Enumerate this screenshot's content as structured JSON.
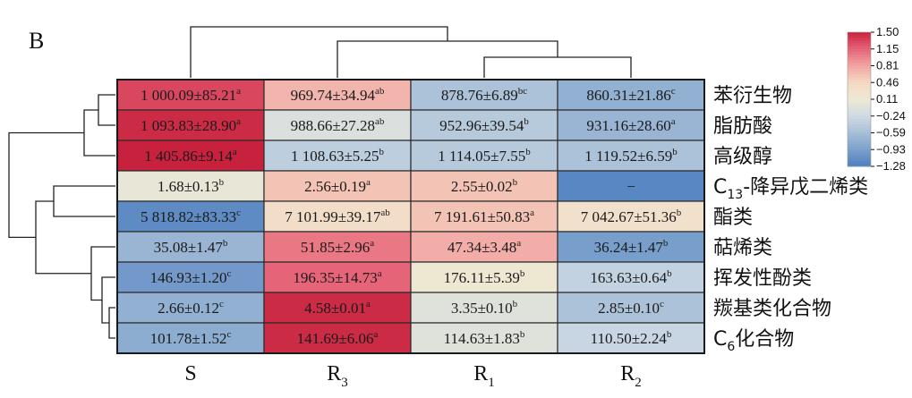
{
  "chart_data": {
    "type": "heatmap",
    "panel_label": "B",
    "columns": [
      {
        "label": "S",
        "sub": ""
      },
      {
        "label": "R",
        "sub": "3"
      },
      {
        "label": "R",
        "sub": "1"
      },
      {
        "label": "R",
        "sub": "2"
      }
    ],
    "rows": [
      {
        "label": "苯衍生物",
        "pre": "",
        "sub": "",
        "post": "",
        "cells": [
          {
            "value": "1 000.09±85.21",
            "sup": "a",
            "z": 1.3
          },
          {
            "value": "969.74±34.94",
            "sup": "ab",
            "z": 0.7
          },
          {
            "value": "878.76±6.89",
            "sup": "bc",
            "z": -0.55
          },
          {
            "value": "860.31±21.86",
            "sup": "c",
            "z": -0.75
          }
        ]
      },
      {
        "label": "脂肪酸",
        "pre": "",
        "sub": "",
        "post": "",
        "cells": [
          {
            "value": "1 093.83±28.90",
            "sup": "a",
            "z": 1.45
          },
          {
            "value": "988.66±27.28",
            "sup": "ab",
            "z": -0.1
          },
          {
            "value": "952.96±39.54",
            "sup": "b",
            "z": -0.45
          },
          {
            "value": "931.16±28.60",
            "sup": "a",
            "z": -0.7
          }
        ]
      },
      {
        "label": "高级醇",
        "pre": "",
        "sub": "",
        "post": "",
        "cells": [
          {
            "value": "1 405.86±9.14",
            "sup": "a",
            "z": 1.5
          },
          {
            "value": "1 108.63±5.25",
            "sup": "b",
            "z": -0.4
          },
          {
            "value": "1 114.05±7.55",
            "sup": "b",
            "z": -0.45
          },
          {
            "value": "1 119.52±6.59",
            "sup": "b",
            "z": -0.55
          }
        ]
      },
      {
        "label": "-降异戊二烯类",
        "pre": "C",
        "sub": "13",
        "post": "-降异戊二烯类",
        "cells": [
          {
            "value": "1.68±0.13",
            "sup": "b",
            "z": 0.05
          },
          {
            "value": "2.56±0.19",
            "sup": "a",
            "z": 0.6
          },
          {
            "value": "2.55±0.02",
            "sup": "b",
            "z": 0.6
          },
          {
            "value": "−",
            "sup": "",
            "z": -1.2
          }
        ]
      },
      {
        "label": "酯类",
        "pre": "",
        "sub": "",
        "post": "",
        "cells": [
          {
            "value": "5 818.82±83.33",
            "sup": "c",
            "z": -1.15
          },
          {
            "value": "7 101.99±39.17",
            "sup": "ab",
            "z": 0.35
          },
          {
            "value": "7 191.61±50.83",
            "sup": "a",
            "z": 0.6
          },
          {
            "value": "7 042.67±51.36",
            "sup": "b",
            "z": 0.3
          }
        ]
      },
      {
        "label": "萜烯类",
        "pre": "",
        "sub": "",
        "post": "",
        "cells": [
          {
            "value": "35.08±1.47",
            "sup": "b",
            "z": -0.7
          },
          {
            "value": "51.85±2.96",
            "sup": "a",
            "z": 1.05
          },
          {
            "value": "47.34±3.48",
            "sup": "a",
            "z": 0.75
          },
          {
            "value": "36.24±1.47",
            "sup": "b",
            "z": -0.95
          }
        ]
      },
      {
        "label": "挥发性酚类",
        "pre": "",
        "sub": "",
        "post": "",
        "cells": [
          {
            "value": "146.93±1.20",
            "sup": "c",
            "z": -1.0
          },
          {
            "value": "196.35±14.73",
            "sup": "a",
            "z": 1.15
          },
          {
            "value": "176.11±5.39",
            "sup": "b",
            "z": 0.15
          },
          {
            "value": "163.63±0.64",
            "sup": "b",
            "z": -0.35
          }
        ]
      },
      {
        "label": "羰基类化合物",
        "pre": "",
        "sub": "",
        "post": "",
        "cells": [
          {
            "value": "2.66±0.12",
            "sup": "c",
            "z": -0.75
          },
          {
            "value": "4.58±0.01",
            "sup": "a",
            "z": 1.45
          },
          {
            "value": "3.35±0.10",
            "sup": "b",
            "z": -0.05
          },
          {
            "value": "2.85±0.10",
            "sup": "c",
            "z": -0.55
          }
        ]
      },
      {
        "label": "化合物",
        "pre": "C",
        "sub": "6",
        "post": "化合物",
        "cells": [
          {
            "value": "101.78±1.52",
            "sup": "c",
            "z": -0.8
          },
          {
            "value": "141.69±6.06",
            "sup": "a",
            "z": 1.45
          },
          {
            "value": "114.63±1.83",
            "sup": "b",
            "z": -0.05
          },
          {
            "value": "110.50±2.24",
            "sup": "b",
            "z": -0.3
          }
        ]
      }
    ],
    "color_scale": {
      "ticks": [
        "1.50",
        "1.15",
        "0.81",
        "0.46",
        "0.11",
        "−0.24",
        "−0.59",
        "−0.93",
        "−1.28"
      ],
      "tick_values": [
        1.5,
        1.15,
        0.81,
        0.46,
        0.11,
        -0.24,
        -0.59,
        -0.93,
        -1.28
      ],
      "colors": [
        "#c8213d",
        "#e56477",
        "#f1a4a3",
        "#f5d9c3",
        "#ede9d4",
        "#cfdae4",
        "#a7bfd6",
        "#7ba0cc",
        "#4d7fc0"
      ]
    },
    "column_dendrogram_order": [
      "S",
      "R3",
      "R1",
      "R2"
    ],
    "row_dendrogram_order": [
      "苯衍生物",
      "脂肪酸",
      "高级醇",
      "C13-降异戊二烯类",
      "酯类",
      "萜烯类",
      "挥发性酚类",
      "羰基类化合物",
      "C6化合物"
    ]
  }
}
